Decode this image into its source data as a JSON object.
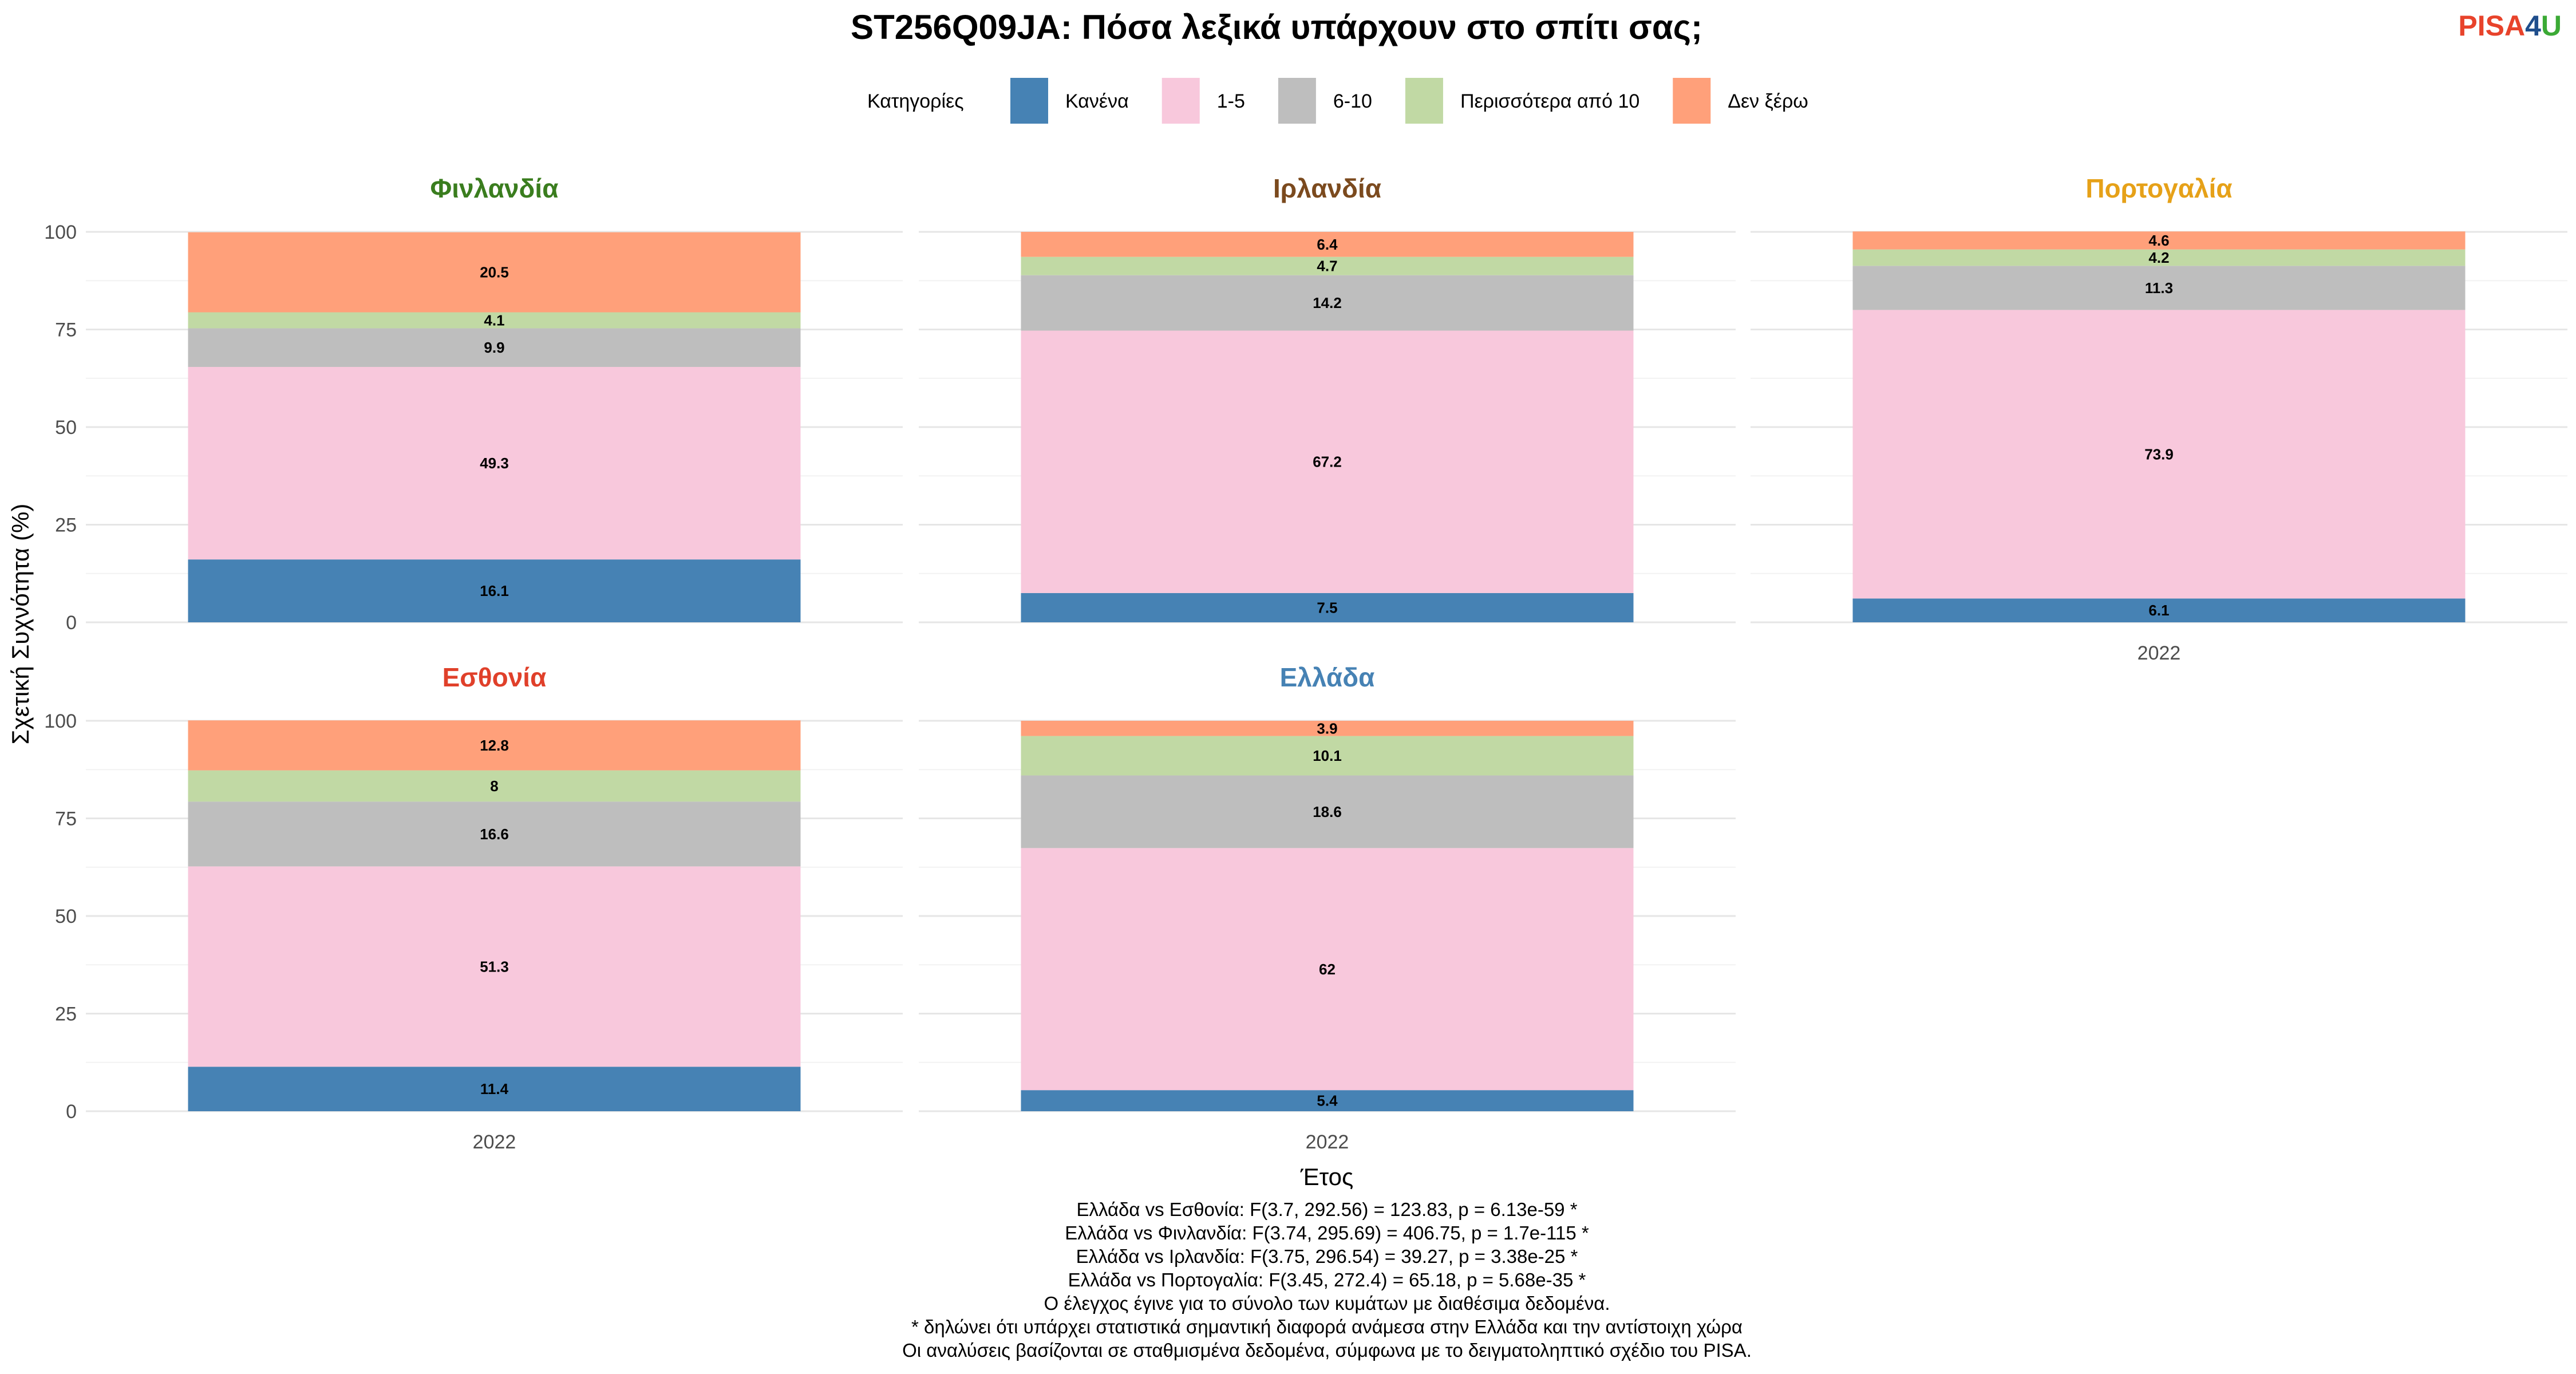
{
  "chart_data": {
    "type": "bar",
    "stacked": true,
    "title": "ST256Q09JA: Πόσα λεξικά υπάρχουν στο σπίτι σας;",
    "xlabel": "Έτος",
    "ylabel": "Σχετική Συχνότητα (%)",
    "ylim": [
      0,
      100
    ],
    "yticks": [
      "0",
      "25",
      "50",
      "75",
      "100"
    ],
    "grid": true,
    "legend": {
      "title": "Κατηγορίες",
      "position": "top",
      "entries": [
        {
          "name": "Κανένα",
          "color": "#4682B4"
        },
        {
          "name": "1-5",
          "color": "#F8C8DC"
        },
        {
          "name": "6-10",
          "color": "#BEBEBE"
        },
        {
          "name": "Περισσότερα από 10",
          "color": "#C1D9A4"
        },
        {
          "name": "Δεν ξέρω",
          "color": "#FFA07A"
        }
      ]
    },
    "panels": [
      {
        "name": "Φινλανδία",
        "title_color": "#3A7D1E",
        "category": "2022",
        "values": [
          16.1,
          49.3,
          9.9,
          4.1,
          20.5
        ],
        "labels": [
          "16.1",
          "49.3",
          "9.9",
          "4.1",
          "20.5"
        ]
      },
      {
        "name": "Ιρλανδία",
        "title_color": "#7B4A1E",
        "category": "2022",
        "values": [
          7.5,
          67.2,
          14.2,
          4.7,
          6.4
        ],
        "labels": [
          "7.5",
          "67.2",
          "14.2",
          "4.7",
          "6.4"
        ]
      },
      {
        "name": "Πορτογαλία",
        "title_color": "#E6A118",
        "category": "2022",
        "values": [
          6.1,
          73.9,
          11.3,
          4.2,
          4.6
        ],
        "labels": [
          "6.1",
          "73.9",
          "11.3",
          "4.2",
          "4.6"
        ]
      },
      {
        "name": "Εσθονία",
        "title_color": "#E0402A",
        "category": "2022",
        "values": [
          11.4,
          51.3,
          16.6,
          8,
          12.8
        ],
        "labels": [
          "11.4",
          "51.3",
          "16.6",
          "8",
          "12.8"
        ]
      },
      {
        "name": "Ελλάδα",
        "title_color": "#4682B4",
        "category": "2022",
        "values": [
          5.4,
          62,
          18.6,
          10.1,
          3.9
        ],
        "labels": [
          "5.4",
          "62",
          "18.6",
          "10.1",
          "3.9"
        ]
      }
    ],
    "footnotes": [
      "Ελλάδα vs Εσθονία: F(3.7, 292.56) = 123.83, p = 6.13e-59 *",
      "Ελλάδα vs Φινλανδία: F(3.74, 295.69) = 406.75, p = 1.7e-115 *",
      "Ελλάδα vs Ιρλανδία: F(3.75, 296.54) = 39.27, p = 3.38e-25 *",
      "Ελλάδα vs Πορτογαλία: F(3.45, 272.4) = 65.18, p = 5.68e-35 *",
      "Ο έλεγχος έγινε για το σύνολο των κυμάτων με διαθέσιμα δεδομένα.",
      "* δηλώνει ότι υπάρχει στατιστικά σημαντική διαφορά ανάμεσα στην Ελλάδα και την αντίστοιχη χώρα",
      "Οι αναλύσεις βασίζονται σε σταθμισμένα δεδομένα, σύμφωνα με το δειγματοληπτικό σχέδιο του PISA."
    ]
  },
  "logo": {
    "text_a": "PISA",
    "text_b": "4",
    "text_c": "U",
    "color_a": "#E8432B",
    "color_b": "#1F4E8C",
    "color_c": "#3BAA35"
  }
}
